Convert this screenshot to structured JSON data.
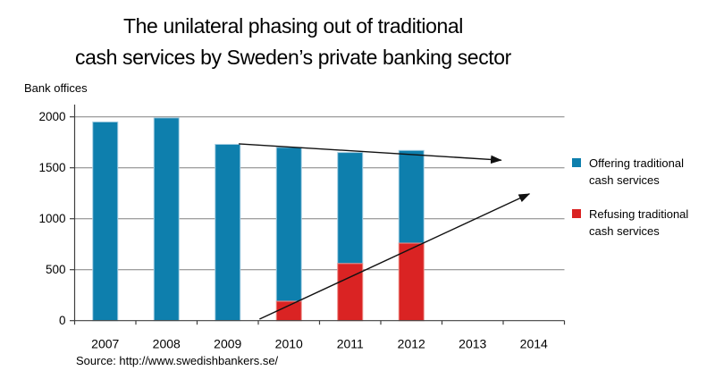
{
  "title": {
    "line1": "The unilateral phasing out of traditional",
    "line2": "cash services by Sweden’s private banking sector"
  },
  "axis_title": "Bank offices",
  "source": "Source: http://www.swedishbankers.se/",
  "legend": [
    {
      "label_line1": "Offering traditional",
      "label_line2": "cash services",
      "color": "#0e7fad"
    },
    {
      "label_line1": "Refusing traditional",
      "label_line2": "cash services",
      "color": "#da2323"
    }
  ],
  "chart_data": {
    "type": "bar",
    "stacked": true,
    "title": "The unilateral phasing out of traditional cash services by Sweden’s private banking sector",
    "categories": [
      "2007",
      "2008",
      "2009",
      "2010",
      "2011",
      "2012",
      "2013",
      "2014"
    ],
    "series": [
      {
        "name": "Refusing traditional cash services",
        "color": "#da2323",
        "edge_color": "#ec8c86",
        "values": [
          0,
          0,
          0,
          190,
          560,
          760,
          0,
          0
        ]
      },
      {
        "name": "Offering traditional cash services",
        "color": "#0e7fad",
        "edge_color": "#a3cde2",
        "values": [
          1950,
          1990,
          1730,
          1510,
          1090,
          910,
          0,
          0
        ]
      }
    ],
    "bar_totals": [
      1950,
      1990,
      1730,
      1700,
      1650,
      1670,
      null,
      null
    ],
    "xlabel": "",
    "ylabel": "Bank offices",
    "ylim": [
      0,
      2000
    ],
    "yticks": [
      0,
      500,
      1000,
      1500,
      2000
    ],
    "grid": true,
    "legend_position": "right",
    "annotations": [
      {
        "type": "arrow",
        "x1": 2.68,
        "y1": 1735,
        "x2": 6.97,
        "y2": 1575
      },
      {
        "type": "arrow",
        "x1": 3.02,
        "y1": 15,
        "x2": 7.43,
        "y2": 1245
      }
    ],
    "colors": {
      "grid": "#808080",
      "axis": "#3f3f3f",
      "arrow": "#111111",
      "background": "#ffffff"
    }
  }
}
